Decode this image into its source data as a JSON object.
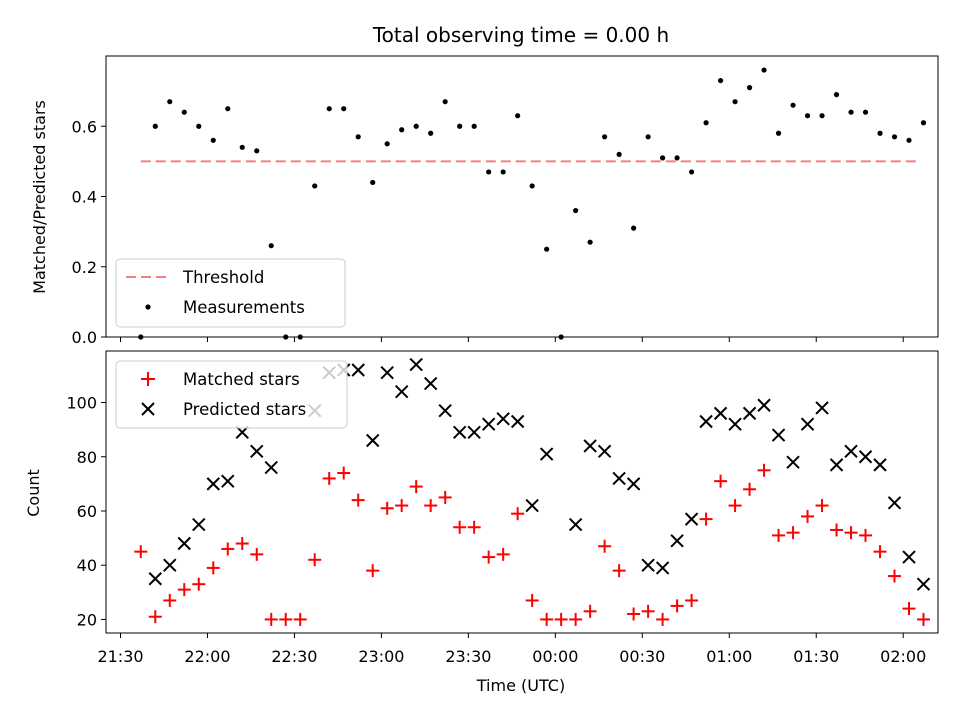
{
  "figure": {
    "title": "Total observing time = 0.00 h",
    "xlabel": "Time (UTC)"
  },
  "chart_data": [
    {
      "type": "scatter",
      "ylabel": "Matched/Predicted stars",
      "ylim": [
        0,
        0.8
      ],
      "yticks": [
        0.0,
        0.2,
        0.4,
        0.6
      ],
      "ytick_labels": [
        "0.0",
        "0.2",
        "0.4",
        "0.6"
      ],
      "xlim": [
        "21:25",
        "02:12"
      ],
      "grid": false,
      "legend": "lower-left",
      "threshold": {
        "name": "Threshold",
        "value": 0.5,
        "color": "#f08080",
        "x_range": [
          "21:37",
          "02:05"
        ]
      },
      "series": [
        {
          "name": "Measurements",
          "color": "#000000",
          "marker": "dot",
          "x": [
            "21:37",
            "21:42",
            "21:47",
            "21:52",
            "21:57",
            "22:02",
            "22:07",
            "22:12",
            "22:17",
            "22:22",
            "22:27",
            "22:32",
            "22:37",
            "22:42",
            "22:47",
            "22:52",
            "22:57",
            "23:02",
            "23:07",
            "23:12",
            "23:17",
            "23:22",
            "23:27",
            "23:32",
            "23:37",
            "23:42",
            "23:47",
            "23:52",
            "23:57",
            "00:02",
            "00:07",
            "00:12",
            "00:17",
            "00:22",
            "00:27",
            "00:32",
            "00:37",
            "00:42",
            "00:47",
            "00:52",
            "00:57",
            "01:02",
            "01:07",
            "01:12",
            "01:17",
            "01:22",
            "01:27",
            "01:32",
            "01:37",
            "01:42",
            "01:47",
            "01:52",
            "01:57",
            "02:02",
            "02:07"
          ],
          "y": [
            0.0,
            0.6,
            0.67,
            0.64,
            0.6,
            0.56,
            0.65,
            0.54,
            0.53,
            0.26,
            0.0,
            0.0,
            0.43,
            0.65,
            0.65,
            0.57,
            0.44,
            0.55,
            0.59,
            0.6,
            0.58,
            0.67,
            0.6,
            0.6,
            0.47,
            0.47,
            0.63,
            0.43,
            0.25,
            0.0,
            0.36,
            0.27,
            0.57,
            0.52,
            0.31,
            0.57,
            0.51,
            0.51,
            0.47,
            0.61,
            0.73,
            0.67,
            0.71,
            0.76,
            0.58,
            0.66,
            0.63,
            0.63,
            0.69,
            0.64,
            0.64,
            0.58,
            0.57,
            0.56,
            0.61
          ]
        }
      ]
    },
    {
      "type": "scatter",
      "ylabel": "Count",
      "ylim": [
        15,
        119
      ],
      "yticks": [
        20,
        40,
        60,
        80,
        100
      ],
      "ytick_labels": [
        "20",
        "40",
        "60",
        "80",
        "100"
      ],
      "xlim": [
        "21:25",
        "02:12"
      ],
      "xticks": [
        "21:30",
        "22:00",
        "22:30",
        "23:00",
        "23:30",
        "00:00",
        "00:30",
        "01:00",
        "01:30",
        "02:00"
      ],
      "grid": false,
      "legend": "upper-left",
      "series": [
        {
          "name": "Matched stars",
          "color": "#ff0000",
          "marker": "plus",
          "x": [
            "21:37",
            "21:42",
            "21:47",
            "21:52",
            "21:57",
            "22:02",
            "22:07",
            "22:12",
            "22:17",
            "22:22",
            "22:27",
            "22:32",
            "22:37",
            "22:42",
            "22:47",
            "22:52",
            "22:57",
            "23:02",
            "23:07",
            "23:12",
            "23:17",
            "23:22",
            "23:27",
            "23:32",
            "23:37",
            "23:42",
            "23:47",
            "23:52",
            "23:57",
            "00:02",
            "00:07",
            "00:12",
            "00:17",
            "00:22",
            "00:27",
            "00:32",
            "00:37",
            "00:42",
            "00:47",
            "00:52",
            "00:57",
            "01:02",
            "01:07",
            "01:12",
            "01:17",
            "01:22",
            "01:27",
            "01:32",
            "01:37",
            "01:42",
            "01:47",
            "01:52",
            "01:57",
            "02:02",
            "02:07"
          ],
          "y": [
            45,
            21,
            27,
            31,
            33,
            39,
            46,
            48,
            44,
            20,
            20,
            20,
            42,
            72,
            74,
            64,
            38,
            61,
            62,
            69,
            62,
            65,
            54,
            54,
            43,
            44,
            59,
            27,
            20,
            20,
            20,
            23,
            47,
            38,
            22,
            23,
            20,
            25,
            27,
            57,
            71,
            62,
            68,
            75,
            51,
            52,
            58,
            62,
            53,
            52,
            51,
            45,
            36,
            24,
            20
          ]
        },
        {
          "name": "Predicted stars",
          "color": "#000000",
          "marker": "x",
          "x": [
            "21:42",
            "21:47",
            "21:52",
            "21:57",
            "22:02",
            "22:07",
            "22:12",
            "22:17",
            "22:22",
            "22:37",
            "22:42",
            "22:47",
            "22:52",
            "22:57",
            "23:02",
            "23:07",
            "23:12",
            "23:17",
            "23:22",
            "23:27",
            "23:32",
            "23:37",
            "23:42",
            "23:47",
            "23:52",
            "23:57",
            "00:07",
            "00:12",
            "00:17",
            "00:22",
            "00:27",
            "00:32",
            "00:37",
            "00:42",
            "00:47",
            "00:52",
            "00:57",
            "01:02",
            "01:07",
            "01:12",
            "01:17",
            "01:22",
            "01:27",
            "01:32",
            "01:37",
            "01:42",
            "01:47",
            "01:52",
            "01:57",
            "02:02",
            "02:07"
          ],
          "y": [
            35,
            40,
            48,
            55,
            70,
            71,
            89,
            82,
            76,
            97,
            111,
            112,
            112,
            86,
            111,
            104,
            114,
            107,
            97,
            89,
            89,
            92,
            94,
            93,
            62,
            81,
            55,
            84,
            82,
            72,
            70,
            40,
            39,
            49,
            57,
            93,
            96,
            92,
            96,
            99,
            88,
            78,
            92,
            98,
            77,
            82,
            80,
            77,
            63,
            43,
            33
          ]
        }
      ]
    }
  ]
}
